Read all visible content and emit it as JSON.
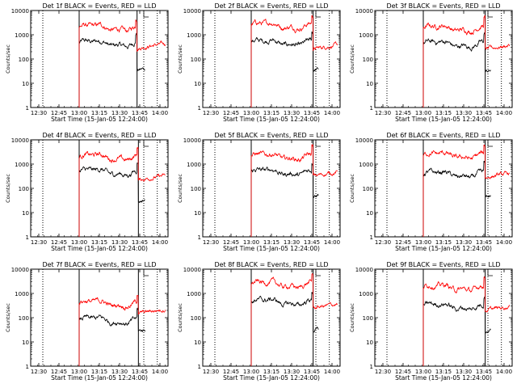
{
  "figure": {
    "time_ticks": [
      "12:30",
      "12:45",
      "13:00",
      "13:15",
      "13:30",
      "13:45",
      "14:00"
    ],
    "y_ticks": [
      "1",
      "10",
      "100",
      "1000",
      "10000"
    ],
    "x_label": "Start Time (15-Jan-05 12:24:00)",
    "y_label": "Counts/sec",
    "series_colors": {
      "events": "#000000",
      "lld": "#ff0000"
    }
  },
  "chart_data": [
    {
      "type": "line",
      "title": "Det 1f BLACK = Events, RED = LLD",
      "ylog": true,
      "ylim": [
        1,
        10000
      ],
      "xlim": [
        "12:24",
        "14:06"
      ],
      "vlines": {
        "dotted": [
          "12:33",
          "13:48",
          "13:58"
        ],
        "solid": [
          "13:00",
          "13:43"
        ]
      },
      "series": [
        {
          "color": "#000000",
          "start": "13:00",
          "base": 450,
          "spikes": [],
          "after_drop": 35,
          "end": "13:49"
        },
        {
          "color": "#ff0000",
          "start": "13:00",
          "base": 2000,
          "spikes": [],
          "after_drop": 280,
          "end": "14:04"
        }
      ]
    },
    {
      "type": "line",
      "title": "Det 2f BLACK = Events, RED = LLD",
      "ylog": true,
      "ylim": [
        1,
        10000
      ],
      "xlim": [
        "12:24",
        "14:06"
      ],
      "vlines": {
        "dotted": [
          "12:33",
          "13:48",
          "13:58"
        ],
        "solid": [
          "13:00",
          "13:46"
        ]
      },
      "series": [
        {
          "color": "#000000",
          "start": "13:00",
          "base": 480,
          "spikes": [],
          "after_drop": 35,
          "end": "13:50"
        },
        {
          "color": "#ff0000",
          "start": "13:00",
          "base": 2500,
          "spikes": [],
          "after_drop": 260,
          "end": "14:04"
        }
      ]
    },
    {
      "type": "line",
      "title": "Det 3f BLACK = Events, RED = LLD",
      "ylog": true,
      "ylim": [
        1,
        10000
      ],
      "xlim": [
        "12:24",
        "14:06"
      ],
      "vlines": {
        "dotted": [
          "12:33",
          "13:48",
          "13:58"
        ],
        "solid": [
          "13:00",
          "13:46"
        ]
      },
      "series": [
        {
          "color": "#000000",
          "start": "13:00",
          "base": 420,
          "spikes": [],
          "after_drop": 30,
          "end": "13:50"
        },
        {
          "color": "#ff0000",
          "start": "13:00",
          "base": 1900,
          "spikes": [],
          "after_drop": 250,
          "end": "14:04"
        }
      ]
    },
    {
      "type": "line",
      "title": "Det 4f BLACK = Events, RED = LLD",
      "ylog": true,
      "ylim": [
        1,
        10000
      ],
      "xlim": [
        "12:24",
        "14:06"
      ],
      "vlines": {
        "dotted": [
          "12:33",
          "13:48",
          "13:58"
        ],
        "solid": [
          "13:00",
          "13:44"
        ]
      },
      "series": [
        {
          "color": "#000000",
          "start": "13:00",
          "base": 480,
          "spikes": [],
          "after_drop": 30,
          "end": "13:49"
        },
        {
          "color": "#ff0000",
          "start": "13:00",
          "base": 2000,
          "spikes": [],
          "after_drop": 220,
          "end": "14:04"
        }
      ]
    },
    {
      "type": "line",
      "title": "Det 5f BLACK = Events, RED = LLD",
      "ylog": true,
      "ylim": [
        1,
        10000
      ],
      "xlim": [
        "12:24",
        "14:06"
      ],
      "vlines": {
        "dotted": [
          "12:33",
          "13:48",
          "13:58"
        ],
        "solid": [
          "13:00",
          "13:46"
        ]
      },
      "series": [
        {
          "color": "#000000",
          "start": "13:00",
          "base": 480,
          "spikes": [],
          "after_drop": 55,
          "end": "13:50"
        },
        {
          "color": "#ff0000",
          "start": "13:00",
          "base": 2100,
          "spikes": [],
          "after_drop": 320,
          "end": "14:04"
        }
      ]
    },
    {
      "type": "line",
      "title": "Det 6f BLACK = Events, RED = LLD",
      "ylog": true,
      "ylim": [
        1,
        10000
      ],
      "xlim": [
        "12:24",
        "14:06"
      ],
      "vlines": {
        "dotted": [
          "12:33",
          "13:48",
          "13:58"
        ],
        "solid": [
          "13:00",
          "13:46"
        ]
      },
      "series": [
        {
          "color": "#000000",
          "start": "13:00",
          "base": 380,
          "spikes": [],
          "after_drop": 45,
          "end": "13:50"
        },
        {
          "color": "#ff0000",
          "start": "13:00",
          "base": 2300,
          "spikes": [],
          "after_drop": 280,
          "end": "14:04"
        }
      ]
    },
    {
      "type": "line",
      "title": "Det 7f BLACK = Events, RED = LLD",
      "ylog": true,
      "ylim": [
        1,
        10000
      ],
      "xlim": [
        "12:24",
        "14:06"
      ],
      "vlines": {
        "dotted": [
          "12:33",
          "13:48",
          "13:58"
        ],
        "solid": [
          "13:00",
          "13:44"
        ]
      },
      "series": [
        {
          "color": "#000000",
          "start": "13:00",
          "base": 80,
          "spikes": [],
          "after_drop": 28,
          "end": "13:49"
        },
        {
          "color": "#ff0000",
          "start": "13:00",
          "base": 400,
          "spikes": [],
          "after_drop": 150,
          "end": "14:04"
        }
      ]
    },
    {
      "type": "line",
      "title": "Det 8f BLACK = Events, RED = LLD",
      "ylog": true,
      "ylim": [
        1,
        10000
      ],
      "xlim": [
        "12:24",
        "14:06"
      ],
      "vlines": {
        "dotted": [
          "12:33",
          "13:48",
          "13:58"
        ],
        "solid": [
          "13:00",
          "13:46"
        ]
      },
      "series": [
        {
          "color": "#000000",
          "start": "13:00",
          "base": 450,
          "spikes": [],
          "after_drop": 30,
          "end": "13:50"
        },
        {
          "color": "#ff0000",
          "start": "13:00",
          "base": 2400,
          "spikes": [],
          "after_drop": 250,
          "end": "14:04"
        }
      ]
    },
    {
      "type": "line",
      "title": "Det 9f BLACK = Events, RED = LLD",
      "ylog": true,
      "ylim": [
        1,
        10000
      ],
      "xlim": [
        "12:24",
        "14:06"
      ],
      "vlines": {
        "dotted": [
          "12:33",
          "13:48",
          "13:58"
        ],
        "solid": [
          "13:00",
          "13:46"
        ]
      },
      "series": [
        {
          "color": "#000000",
          "start": "13:00",
          "base": 300,
          "spikes": [],
          "after_drop": 28,
          "end": "13:50"
        },
        {
          "color": "#ff0000",
          "start": "13:00",
          "base": 1800,
          "spikes": [],
          "after_drop": 200,
          "end": "14:04"
        }
      ]
    }
  ]
}
